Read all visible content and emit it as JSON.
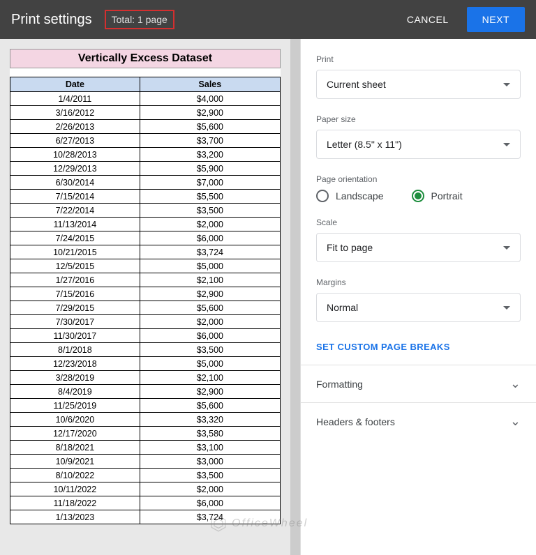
{
  "topbar": {
    "title": "Print settings",
    "total": "Total: 1 page",
    "cancel": "CANCEL",
    "next": "NEXT"
  },
  "sheet": {
    "title": "Vertically Excess Dataset",
    "headers": {
      "date": "Date",
      "sales": "Sales"
    },
    "rows": [
      {
        "date": "1/4/2011",
        "sales": "$4,000"
      },
      {
        "date": "3/16/2012",
        "sales": "$2,900"
      },
      {
        "date": "2/26/2013",
        "sales": "$5,600"
      },
      {
        "date": "6/27/2013",
        "sales": "$3,700"
      },
      {
        "date": "10/28/2013",
        "sales": "$3,200"
      },
      {
        "date": "12/29/2013",
        "sales": "$5,900"
      },
      {
        "date": "6/30/2014",
        "sales": "$7,000"
      },
      {
        "date": "7/15/2014",
        "sales": "$5,500"
      },
      {
        "date": "7/22/2014",
        "sales": "$3,500"
      },
      {
        "date": "11/13/2014",
        "sales": "$2,000"
      },
      {
        "date": "7/24/2015",
        "sales": "$6,000"
      },
      {
        "date": "10/21/2015",
        "sales": "$3,724"
      },
      {
        "date": "12/5/2015",
        "sales": "$5,000"
      },
      {
        "date": "1/27/2016",
        "sales": "$2,100"
      },
      {
        "date": "7/15/2016",
        "sales": "$2,900"
      },
      {
        "date": "7/29/2015",
        "sales": "$5,600"
      },
      {
        "date": "7/30/2017",
        "sales": "$2,000"
      },
      {
        "date": "11/30/2017",
        "sales": "$6,000"
      },
      {
        "date": "8/1/2018",
        "sales": "$3,500"
      },
      {
        "date": "12/23/2018",
        "sales": "$5,000"
      },
      {
        "date": "3/28/2019",
        "sales": "$2,100"
      },
      {
        "date": "8/4/2019",
        "sales": "$2,900"
      },
      {
        "date": "11/25/2019",
        "sales": "$5,600"
      },
      {
        "date": "10/6/2020",
        "sales": "$3,320"
      },
      {
        "date": "12/17/2020",
        "sales": "$3,580"
      },
      {
        "date": "8/18/2021",
        "sales": "$3,100"
      },
      {
        "date": "10/9/2021",
        "sales": "$3,000"
      },
      {
        "date": "8/10/2022",
        "sales": "$3,500"
      },
      {
        "date": "10/11/2022",
        "sales": "$2,000"
      },
      {
        "date": "11/18/2022",
        "sales": "$6,000"
      },
      {
        "date": "1/13/2023",
        "sales": "$3,724"
      }
    ]
  },
  "settings": {
    "print_label": "Print",
    "print_value": "Current sheet",
    "paper_label": "Paper size",
    "paper_value": "Letter (8.5\" x 11\")",
    "orientation_label": "Page orientation",
    "landscape": "Landscape",
    "portrait": "Portrait",
    "orientation_selected": "portrait",
    "scale_label": "Scale",
    "scale_value": "Fit to page",
    "margins_label": "Margins",
    "margins_value": "Normal",
    "custom_breaks": "SET CUSTOM PAGE BREAKS",
    "formatting": "Formatting",
    "headers_footers": "Headers & footers"
  },
  "watermark": "OfficeWheel",
  "colors": {
    "topbar_bg": "#424242",
    "accent_blue": "#1a73e8",
    "accent_green": "#1e8e3e",
    "highlight_border": "#d32f2f",
    "title_bg": "#f4d6e3",
    "th_bg": "#c9daf0"
  }
}
